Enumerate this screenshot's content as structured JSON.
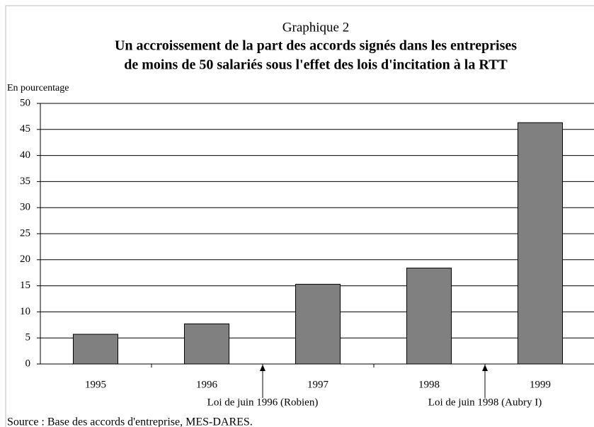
{
  "chart_data": {
    "type": "bar",
    "title": "Graphique 2",
    "subtitle": [
      "Un accroissement de la part des accords signés dans les entreprises",
      "de moins de 50 salariés sous l'effet des lois d'incitation à la RTT"
    ],
    "y_label": "En pourcentage",
    "categories": [
      "1995",
      "1996",
      "1997",
      "1998",
      "1999"
    ],
    "values": [
      5.7,
      7.7,
      15.3,
      18.4,
      46.3
    ],
    "color": "#808080",
    "ylim": [
      0,
      50
    ],
    "yticks": [
      0,
      5,
      10,
      15,
      20,
      25,
      30,
      35,
      40,
      45,
      50
    ],
    "grid": true,
    "annotations": [
      "Loi de juin 1996 (Robien)",
      "Loi de juin 1998 (Aubry I)"
    ],
    "source": "Source : Base des accords d'entreprise, MES-DARES."
  }
}
